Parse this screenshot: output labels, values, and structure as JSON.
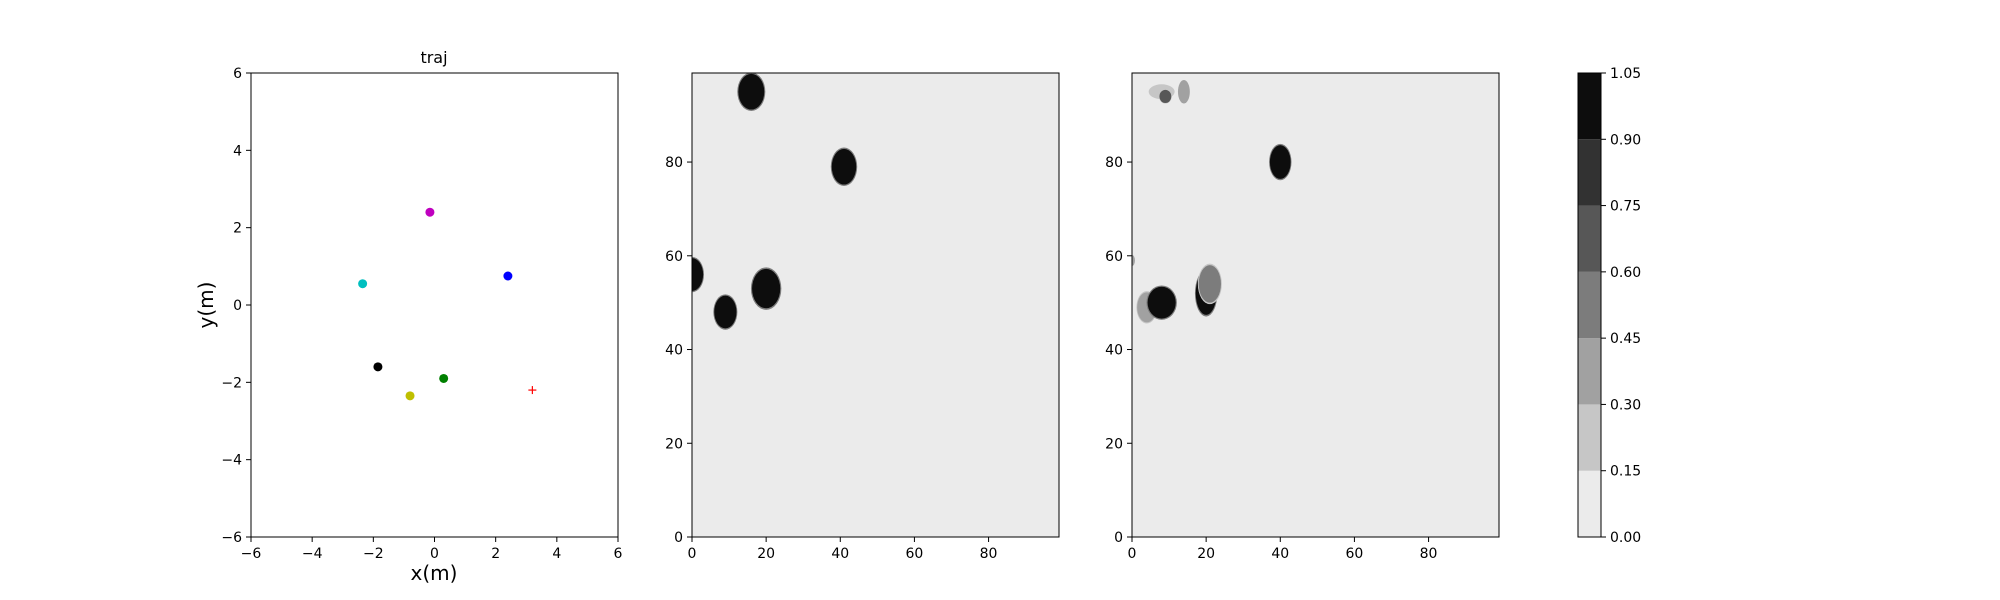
{
  "chart_data": [
    {
      "type": "scatter",
      "title": "traj",
      "xlabel": "x(m)",
      "ylabel": "y(m)",
      "xlim": [
        -6,
        6
      ],
      "ylim": [
        -6,
        6
      ],
      "xticks": [
        "−6",
        "−4",
        "−2",
        "0",
        "2",
        "4",
        "6"
      ],
      "yticks": [
        "−6",
        "−4",
        "−2",
        "0",
        "2",
        "4",
        "6"
      ],
      "grid": false,
      "points": [
        {
          "x": -0.15,
          "y": 2.4,
          "color": "#bf00bf",
          "marker": "circle"
        },
        {
          "x": 2.4,
          "y": 0.75,
          "color": "#0000ff",
          "marker": "circle"
        },
        {
          "x": -2.35,
          "y": 0.55,
          "color": "#00bfbf",
          "marker": "circle"
        },
        {
          "x": -1.85,
          "y": -1.6,
          "color": "#000000",
          "marker": "circle"
        },
        {
          "x": 0.3,
          "y": -1.9,
          "color": "#008000",
          "marker": "circle"
        },
        {
          "x": -0.8,
          "y": -2.35,
          "color": "#bfbf00",
          "marker": "circle"
        },
        {
          "x": 3.2,
          "y": -2.2,
          "color": "#ff0000",
          "marker": "plus"
        }
      ]
    },
    {
      "type": "heatmap",
      "xlim": [
        0,
        99
      ],
      "ylim": [
        0,
        99
      ],
      "xticks": [
        "0",
        "20",
        "40",
        "60",
        "80"
      ],
      "yticks": [
        "0",
        "20",
        "40",
        "60",
        "80"
      ],
      "background_value": 0.0,
      "blobs": [
        {
          "cx": 16,
          "cy": 95,
          "rx": 3.5,
          "ry": 3.8,
          "value": 1.0
        },
        {
          "cx": 41,
          "cy": 79,
          "rx": 3.3,
          "ry": 3.8,
          "value": 1.0
        },
        {
          "cx": 0,
          "cy": 56,
          "rx": 3.0,
          "ry": 3.5,
          "value": 1.0
        },
        {
          "cx": 9,
          "cy": 48,
          "rx": 3.0,
          "ry": 3.5,
          "value": 1.0
        },
        {
          "cx": 20,
          "cy": 53,
          "rx": 3.8,
          "ry": 4.2,
          "value": 1.0
        }
      ]
    },
    {
      "type": "heatmap",
      "xlim": [
        0,
        99
      ],
      "ylim": [
        0,
        99
      ],
      "xticks": [
        "0",
        "20",
        "40",
        "60",
        "80"
      ],
      "yticks": [
        "0",
        "20",
        "40",
        "60",
        "80"
      ],
      "background_value": 0.0,
      "blobs": [
        {
          "cx": 8,
          "cy": 95,
          "rx": 3.5,
          "ry": 1.6,
          "value": 0.25
        },
        {
          "cx": 9,
          "cy": 94,
          "rx": 1.6,
          "ry": 1.4,
          "value": 0.6
        },
        {
          "cx": 14,
          "cy": 95,
          "rx": 1.6,
          "ry": 2.5,
          "value": 0.3
        },
        {
          "cx": 0,
          "cy": 59,
          "rx": 0.8,
          "ry": 1.2,
          "value": 0.3
        },
        {
          "cx": 4,
          "cy": 49,
          "rx": 2.6,
          "ry": 3.2,
          "value": 0.35
        },
        {
          "cx": 8,
          "cy": 50,
          "rx": 3.8,
          "ry": 3.4,
          "value": 1.0
        },
        {
          "cx": 20,
          "cy": 52,
          "rx": 2.8,
          "ry": 4.6,
          "value": 1.0
        },
        {
          "cx": 21,
          "cy": 54,
          "rx": 3.0,
          "ry": 4.0,
          "value": 0.5
        },
        {
          "cx": 40,
          "cy": 80,
          "rx": 2.8,
          "ry": 3.6,
          "value": 1.0
        }
      ]
    },
    {
      "type": "colorbar",
      "levels": [
        0.0,
        0.15,
        0.3,
        0.45,
        0.6,
        0.75,
        0.9,
        1.05
      ],
      "tick_labels": [
        "0.00",
        "0.15",
        "0.30",
        "0.45",
        "0.60",
        "0.75",
        "0.90",
        "1.05"
      ],
      "colors": [
        "#ebebeb",
        "#c6c6c6",
        "#a1a1a1",
        "#7c7c7c",
        "#575757",
        "#323232",
        "#0d0d0d"
      ]
    }
  ]
}
